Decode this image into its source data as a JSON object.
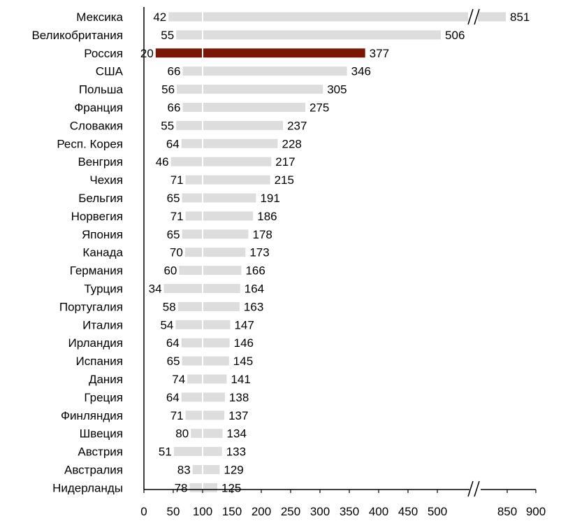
{
  "chart_data": {
    "type": "bar",
    "orientation": "horizontal",
    "title": "",
    "xlabel": "",
    "ylabel": "",
    "grid": false,
    "legend": "none",
    "axis_break": {
      "from": 530,
      "to": 820
    },
    "xlim": [
      0,
      900
    ],
    "x_ticks": [
      "0",
      "50",
      "100",
      "150",
      "200",
      "250",
      "300",
      "350",
      "400",
      "450",
      "500",
      "850",
      "900"
    ],
    "x_tick_values": [
      0,
      50,
      100,
      150,
      200,
      250,
      300,
      350,
      400,
      450,
      500,
      850,
      900
    ],
    "categories": [
      "Мексика",
      "Великобритания",
      "Россия",
      "США",
      "Польша",
      "Франция",
      "Словакия",
      "Респ. Корея",
      "Венгрия",
      "Чехия",
      "Бельгия",
      "Норвегия",
      "Япония",
      "Канада",
      "Германия",
      "Турция",
      "Португалия",
      "Италия",
      "Ирландия",
      "Испания",
      "Дания",
      "Греция",
      "Финляндия",
      "Швеция",
      "Австрия",
      "Австралия",
      "Нидерланды"
    ],
    "start_values": [
      42,
      55,
      20,
      66,
      56,
      66,
      55,
      64,
      46,
      71,
      65,
      71,
      65,
      70,
      60,
      34,
      58,
      54,
      64,
      65,
      74,
      64,
      71,
      80,
      51,
      83,
      78
    ],
    "end_values": [
      851,
      506,
      377,
      346,
      305,
      275,
      237,
      228,
      217,
      215,
      191,
      186,
      178,
      173,
      166,
      164,
      163,
      147,
      146,
      145,
      141,
      138,
      137,
      134,
      133,
      129,
      125
    ],
    "highlight": "Россия",
    "colors": {
      "bar": "#dddddd",
      "highlight": "#7b1606",
      "axis": "#000000",
      "marker": "#ffffff"
    },
    "marker_value": 100
  }
}
